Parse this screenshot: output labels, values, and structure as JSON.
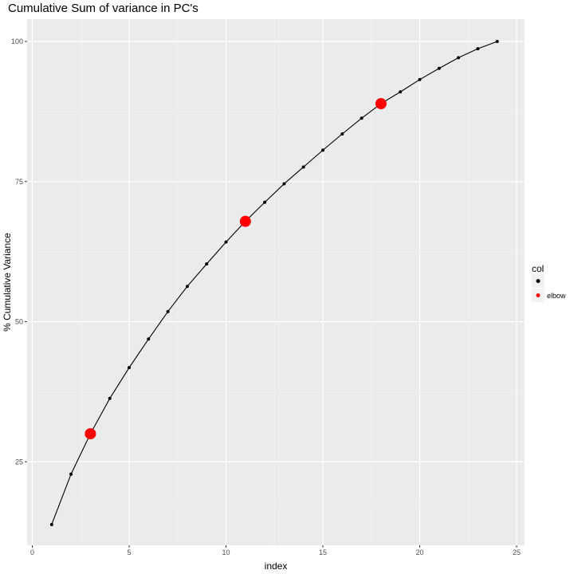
{
  "chart_data": {
    "type": "line",
    "title": "Cumulative Sum of variance in PC's",
    "xlabel": "index",
    "ylabel": "% Cumulative Variance",
    "xlim": [
      0,
      25
    ],
    "ylim": [
      10,
      100
    ],
    "x_ticks": [
      0,
      5,
      10,
      15,
      20,
      25
    ],
    "y_ticks": [
      25,
      50,
      75,
      100
    ],
    "grid": true,
    "series": [
      {
        "x": [
          1,
          2,
          3,
          4,
          5,
          6,
          7,
          8,
          9,
          10,
          11,
          12,
          13,
          14,
          15,
          16,
          17,
          18,
          19,
          20,
          21,
          22,
          23,
          24
        ],
        "values": [
          13.8,
          22.8,
          30.0,
          36.3,
          41.8,
          46.9,
          51.8,
          56.3,
          60.3,
          64.2,
          67.9,
          71.3,
          74.6,
          77.6,
          80.6,
          83.5,
          86.3,
          88.9,
          91.0,
          93.2,
          95.2,
          97.1,
          98.7,
          100.0
        ],
        "color": "#000000"
      }
    ],
    "highlighted_points": [
      {
        "x": 3,
        "y": 30.0
      },
      {
        "x": 11,
        "y": 67.9
      },
      {
        "x": 18,
        "y": 88.9
      }
    ],
    "legend": {
      "title": "col",
      "placement": "right",
      "entries": [
        {
          "label": "",
          "color": "#000000"
        },
        {
          "label": "elbow",
          "color": "#ff0000"
        }
      ]
    },
    "colors": {
      "panel_background": "#ebebeb",
      "grid_major": "#ffffff",
      "line": "#000000",
      "elbow": "#ff0000"
    }
  }
}
